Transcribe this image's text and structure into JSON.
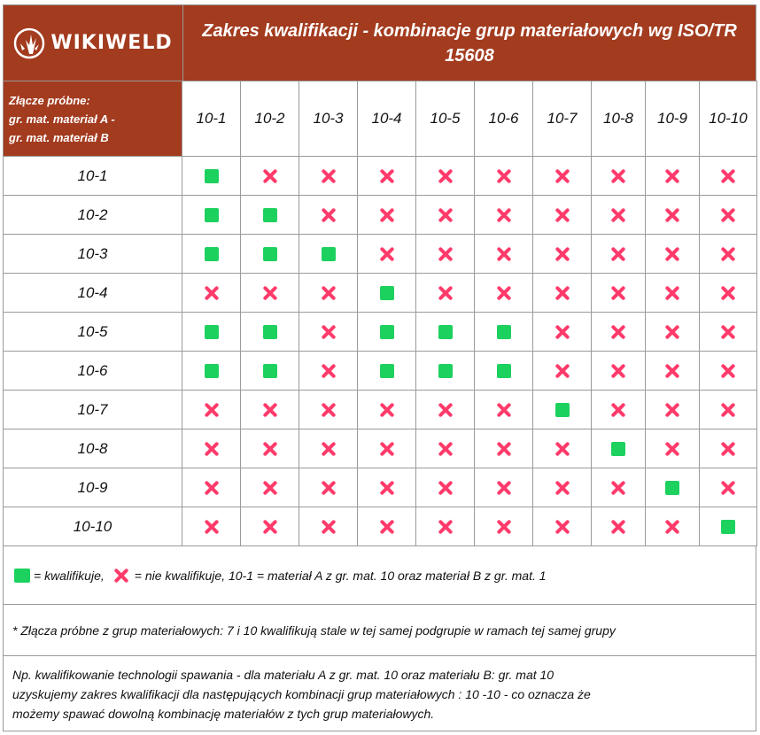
{
  "header": {
    "brand": "WIKIWELD",
    "title": "Zakres kwalifikacji - kombinacje grup materiałowych wg ISO/TR 15608"
  },
  "corner_label": {
    "line1": "Złącze próbne:",
    "line2": "gr. mat. materiał A -",
    "line3": "gr. mat. materiał B"
  },
  "columns": [
    "10-1",
    "10-2",
    "10-3",
    "10-4",
    "10-5",
    "10-6",
    "10-7",
    "10-8",
    "10-9",
    "10-10"
  ],
  "rows": [
    {
      "label": "10-1",
      "cells": [
        1,
        0,
        0,
        0,
        0,
        0,
        0,
        0,
        0,
        0
      ]
    },
    {
      "label": "10-2",
      "cells": [
        1,
        1,
        0,
        0,
        0,
        0,
        0,
        0,
        0,
        0
      ]
    },
    {
      "label": "10-3",
      "cells": [
        1,
        1,
        1,
        0,
        0,
        0,
        0,
        0,
        0,
        0
      ]
    },
    {
      "label": "10-4",
      "cells": [
        0,
        0,
        0,
        1,
        0,
        0,
        0,
        0,
        0,
        0
      ]
    },
    {
      "label": "10-5",
      "cells": [
        1,
        1,
        0,
        1,
        1,
        1,
        0,
        0,
        0,
        0
      ]
    },
    {
      "label": "10-6",
      "cells": [
        1,
        1,
        0,
        1,
        1,
        1,
        0,
        0,
        0,
        0
      ]
    },
    {
      "label": "10-7",
      "cells": [
        0,
        0,
        0,
        0,
        0,
        0,
        1,
        0,
        0,
        0
      ]
    },
    {
      "label": "10-8",
      "cells": [
        0,
        0,
        0,
        0,
        0,
        0,
        0,
        1,
        0,
        0
      ]
    },
    {
      "label": "10-9",
      "cells": [
        0,
        0,
        0,
        0,
        0,
        0,
        0,
        0,
        1,
        0
      ]
    },
    {
      "label": "10-10",
      "cells": [
        0,
        0,
        0,
        0,
        0,
        0,
        0,
        0,
        0,
        1
      ]
    }
  ],
  "legend": {
    "ok_text": "= kwalifikuje,",
    "no_text": "= nie kwalifikuje, 10-1 = materiał A z gr. mat. 10 oraz materiał B z gr. mat. 1"
  },
  "remark": "* Złącza próbne z grup materiałowych: 7 i 10  kwalifikują stale w tej samej podgrupie w ramach tej samej grupy",
  "example": {
    "line1": "Np. kwalifikowanie technologii spawania -  dla materiału A z gr. mat. 10 oraz materiału B: gr. mat 10",
    "line2": "uzyskujemy zakres kwalifikacji dla następujących kombinacji grup materiałowych : 10 -10 - co oznacza że",
    "line3": "możemy spawać  dowolną kombinację materiałów z tych grup materiałowych."
  },
  "colors": {
    "header_bg": "#a33b1f",
    "ok": "#1dd15f",
    "no": "#ff3b6b"
  },
  "icons": {
    "logo": "flame-burst-icon",
    "ok": "green-square-icon",
    "no": "red-cross-icon"
  }
}
